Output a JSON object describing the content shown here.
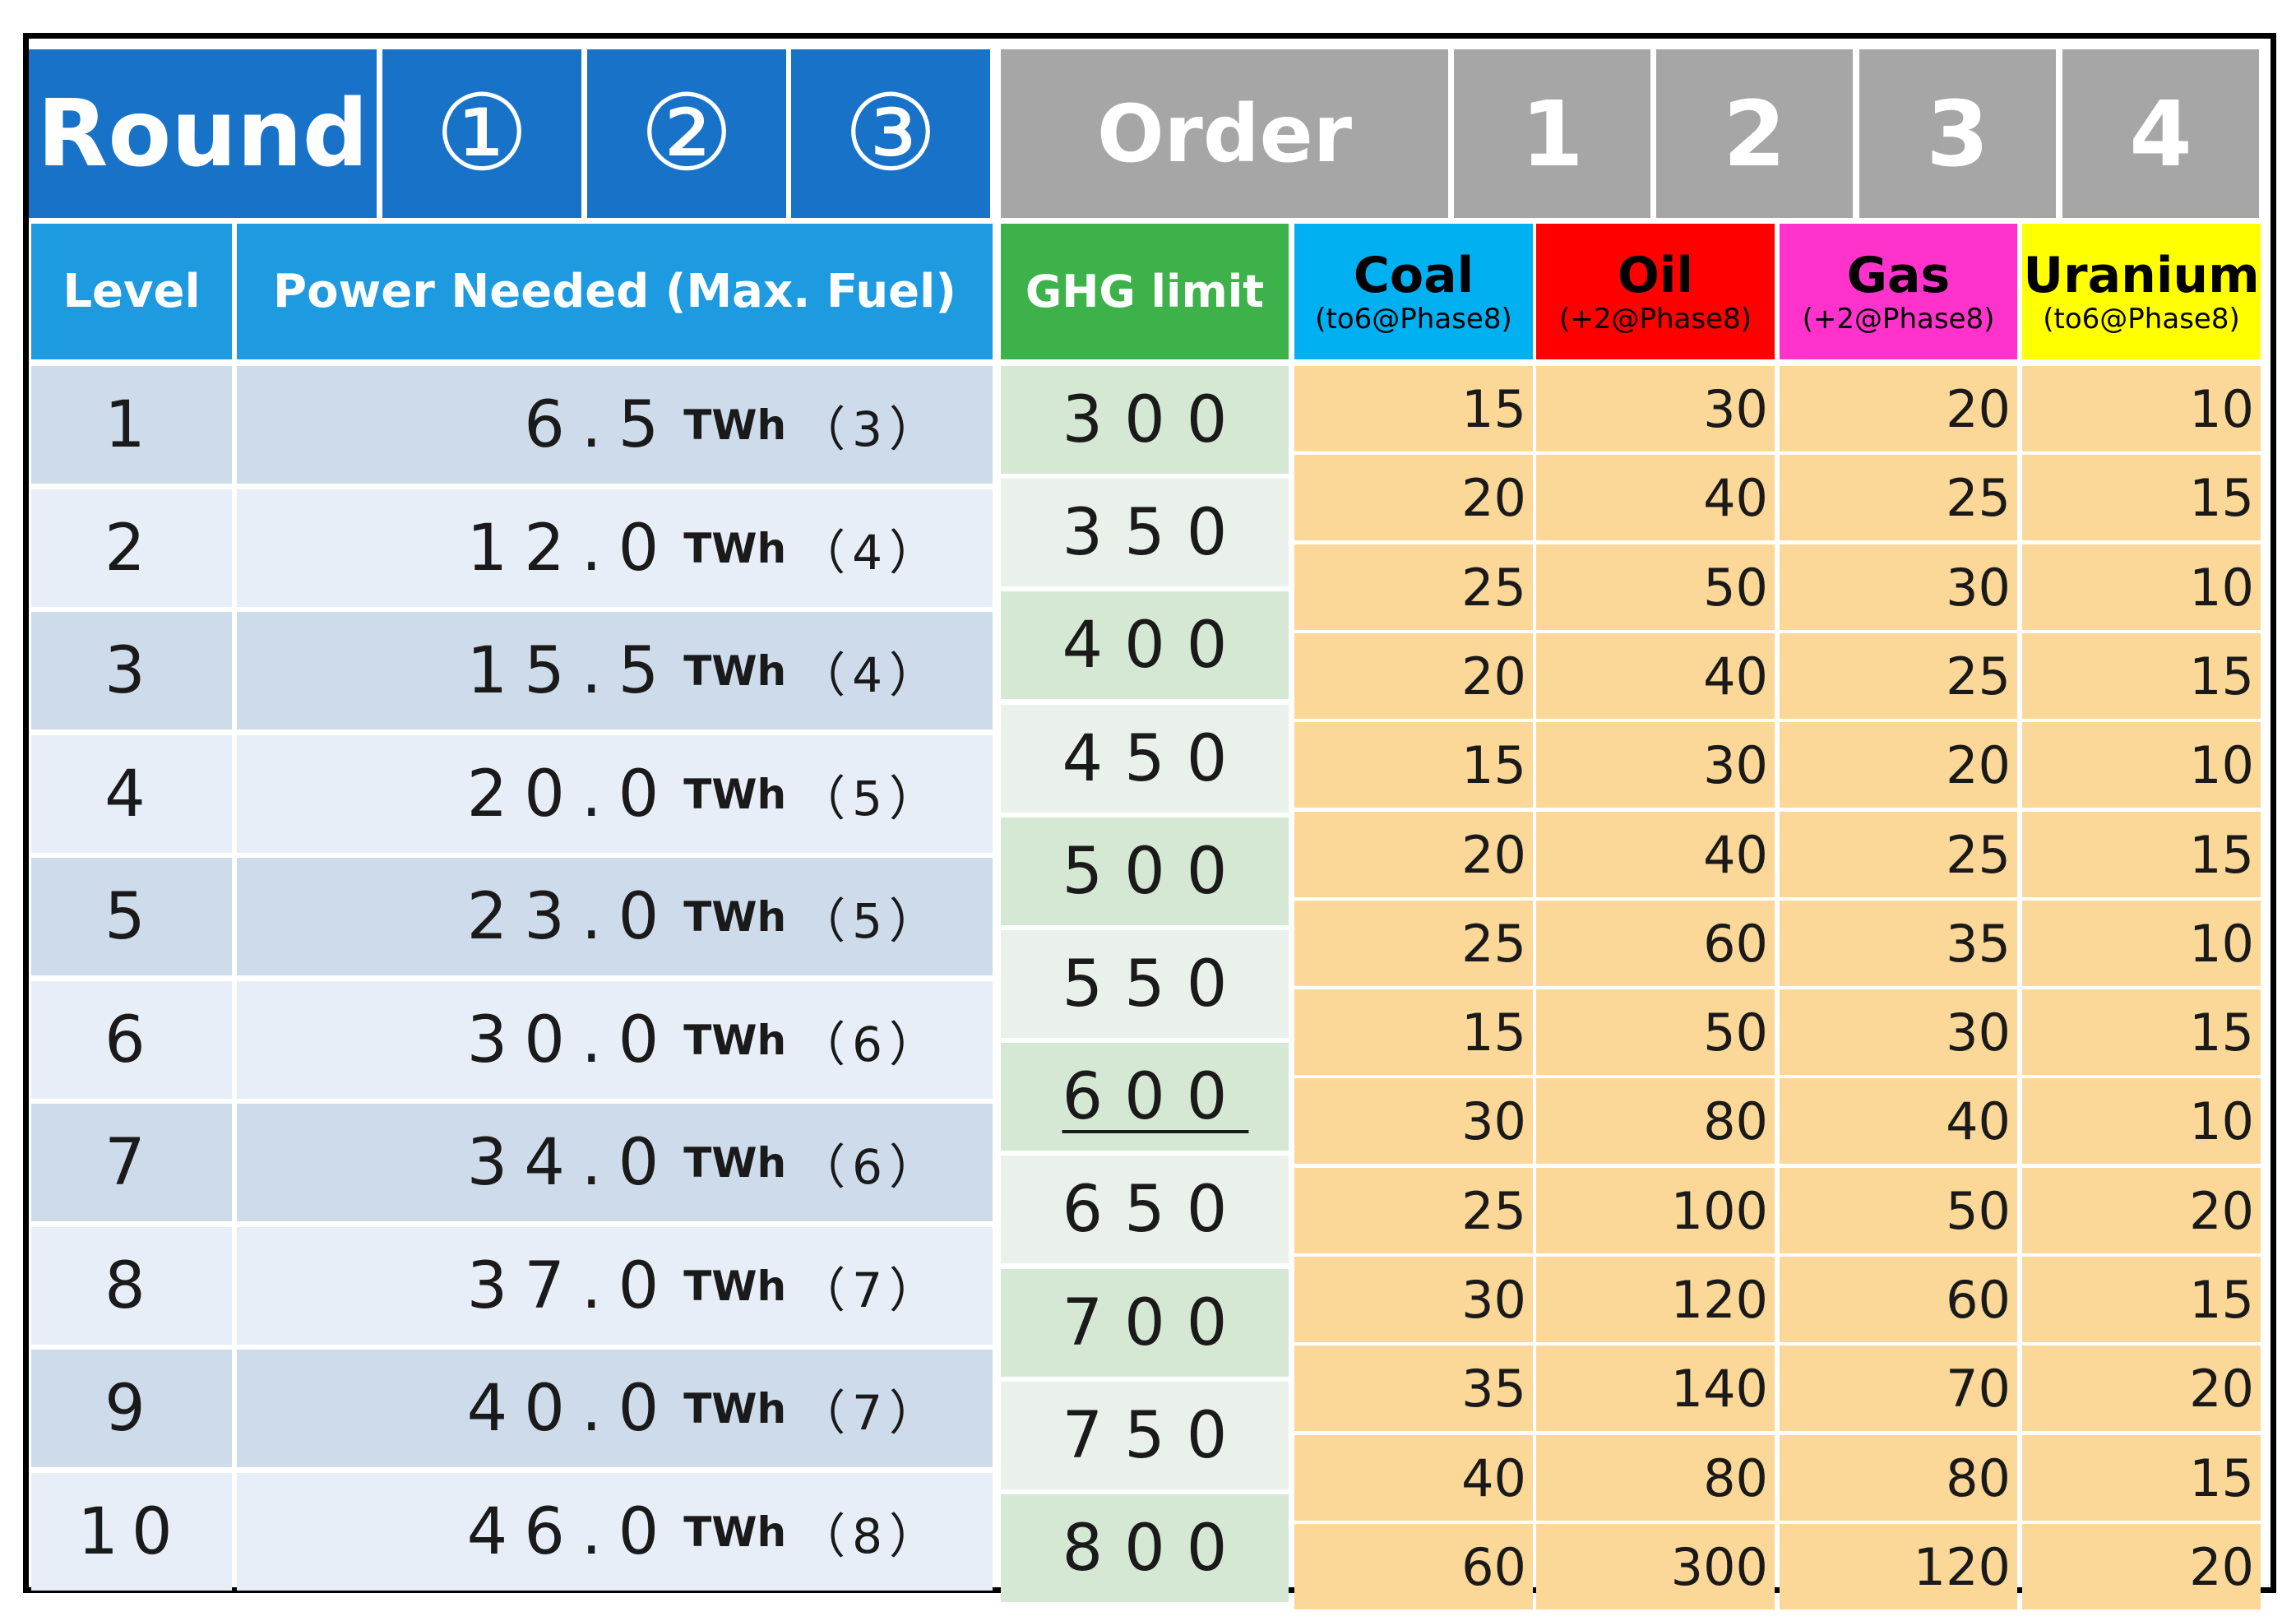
{
  "round": {
    "label": "Round",
    "items": [
      "①",
      "②",
      "③"
    ]
  },
  "order": {
    "label": "Order",
    "items": [
      "1",
      "2",
      "3",
      "4"
    ]
  },
  "headers": {
    "level": "Level",
    "power": "Power Needed (Max. Fuel)",
    "ghg": "GHG limit"
  },
  "fuels": [
    {
      "name": "Coal",
      "note": "(to6@Phase8)",
      "color": "#00b0f0"
    },
    {
      "name": "Oil",
      "note": "(+2@Phase8)",
      "color": "#ff0000"
    },
    {
      "name": "Gas",
      "note": "(+2@Phase8)",
      "color": "#ff33cc"
    },
    {
      "name": "Uranium",
      "note": "(to6@Phase8)",
      "color": "#ffff00"
    }
  ],
  "levels": [
    {
      "level": "1",
      "power": "6.5",
      "unit": "TWh",
      "max_fuel": "（3）"
    },
    {
      "level": "2",
      "power": "12.0",
      "unit": "TWh",
      "max_fuel": "（4）"
    },
    {
      "level": "3",
      "power": "15.5",
      "unit": "TWh",
      "max_fuel": "（4）"
    },
    {
      "level": "4",
      "power": "20.0",
      "unit": "TWh",
      "max_fuel": "（5）"
    },
    {
      "level": "5",
      "power": "23.0",
      "unit": "TWh",
      "max_fuel": "（5）"
    },
    {
      "level": "6",
      "power": "30.0",
      "unit": "TWh",
      "max_fuel": "（6）"
    },
    {
      "level": "7",
      "power": "34.0",
      "unit": "TWh",
      "max_fuel": "（6）"
    },
    {
      "level": "8",
      "power": "37.0",
      "unit": "TWh",
      "max_fuel": "（7）"
    },
    {
      "level": "9",
      "power": "40.0",
      "unit": "TWh",
      "max_fuel": "（7）"
    },
    {
      "level": "10",
      "power": "46.0",
      "unit": "TWh",
      "max_fuel": "（8）"
    }
  ],
  "ghg_limits": [
    "300",
    "350",
    "400",
    "450",
    "500",
    "550",
    "600",
    "650",
    "700",
    "750",
    "800"
  ],
  "ghg_underlined": "600",
  "prices": [
    [
      "15",
      "30",
      "20",
      "10"
    ],
    [
      "20",
      "40",
      "25",
      "15"
    ],
    [
      "25",
      "50",
      "30",
      "10"
    ],
    [
      "20",
      "40",
      "25",
      "15"
    ],
    [
      "15",
      "30",
      "20",
      "10"
    ],
    [
      "20",
      "40",
      "25",
      "15"
    ],
    [
      "25",
      "60",
      "35",
      "10"
    ],
    [
      "15",
      "50",
      "30",
      "15"
    ],
    [
      "30",
      "80",
      "40",
      "10"
    ],
    [
      "25",
      "100",
      "50",
      "20"
    ],
    [
      "30",
      "120",
      "60",
      "15"
    ],
    [
      "35",
      "140",
      "70",
      "20"
    ],
    [
      "40",
      "80",
      "80",
      "15"
    ],
    [
      "60",
      "300",
      "120",
      "20"
    ]
  ]
}
